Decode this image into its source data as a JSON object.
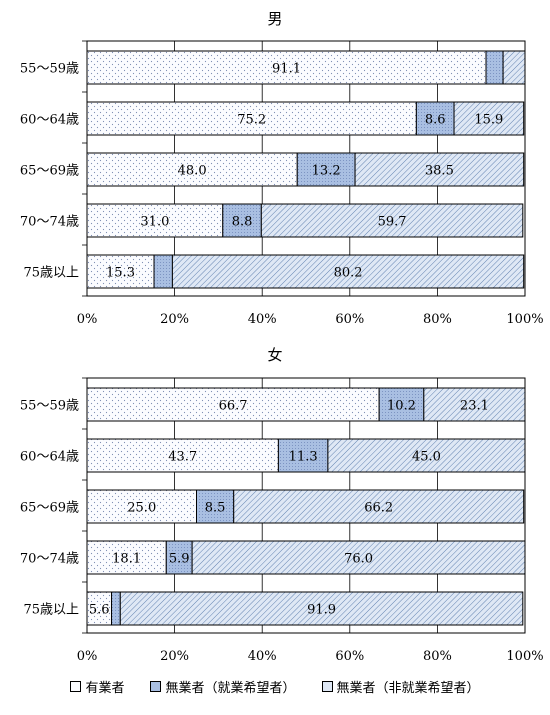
{
  "colors": {
    "employed": "#fbfcff",
    "want_work": "#a9bfe2",
    "no_want": "#dfe8f5",
    "hatch": "#5577aa",
    "dots": "#7f8fb4"
  },
  "legend": {
    "employed": "有業者",
    "want_work": "無業者（就業希望者）",
    "no_want": "無業者（非就業希望者）"
  },
  "chart_data": [
    {
      "type": "bar",
      "title": "男",
      "categories": [
        "55～59歳",
        "60～64歳",
        "65～69歳",
        "70～74歳",
        "75歳以上"
      ],
      "series": [
        {
          "name": "有業者",
          "values": [
            91.1,
            75.2,
            48.0,
            31.0,
            15.3
          ]
        },
        {
          "name": "無業者（就業希望者）",
          "values": [
            3.9,
            8.6,
            13.2,
            8.8,
            4.2
          ]
        },
        {
          "name": "無業者（非就業希望者）",
          "values": [
            5.0,
            15.9,
            38.5,
            59.7,
            80.2
          ]
        }
      ],
      "labels": [
        [
          "91.1",
          "",
          ""
        ],
        [
          "75.2",
          "8.6",
          "15.9"
        ],
        [
          "48.0",
          "13.2",
          "38.5"
        ],
        [
          "31.0",
          "8.8",
          "59.7"
        ],
        [
          "15.3",
          "",
          "80.2"
        ]
      ],
      "xlim": [
        0,
        100
      ],
      "ticks": [
        "0%",
        "20%",
        "40%",
        "60%",
        "80%",
        "100%"
      ],
      "stacked": true,
      "orientation": "horizontal"
    },
    {
      "type": "bar",
      "title": "女",
      "categories": [
        "55～59歳",
        "60～64歳",
        "65～69歳",
        "70～74歳",
        "75歳以上"
      ],
      "series": [
        {
          "name": "有業者",
          "values": [
            66.7,
            43.7,
            25.0,
            18.1,
            5.6
          ]
        },
        {
          "name": "無業者（就業希望者）",
          "values": [
            10.2,
            11.3,
            8.5,
            5.9,
            2.0
          ]
        },
        {
          "name": "無業者（非就業希望者）",
          "values": [
            23.1,
            45.0,
            66.2,
            76.0,
            91.9
          ]
        }
      ],
      "labels": [
        [
          "66.7",
          "10.2",
          "23.1"
        ],
        [
          "43.7",
          "11.3",
          "45.0"
        ],
        [
          "25.0",
          "8.5",
          "66.2"
        ],
        [
          "18.1",
          "5.9",
          "76.0"
        ],
        [
          "5.6",
          "",
          "91.9"
        ]
      ],
      "xlim": [
        0,
        100
      ],
      "ticks": [
        "0%",
        "20%",
        "40%",
        "60%",
        "80%",
        "100%"
      ],
      "stacked": true,
      "orientation": "horizontal"
    }
  ]
}
